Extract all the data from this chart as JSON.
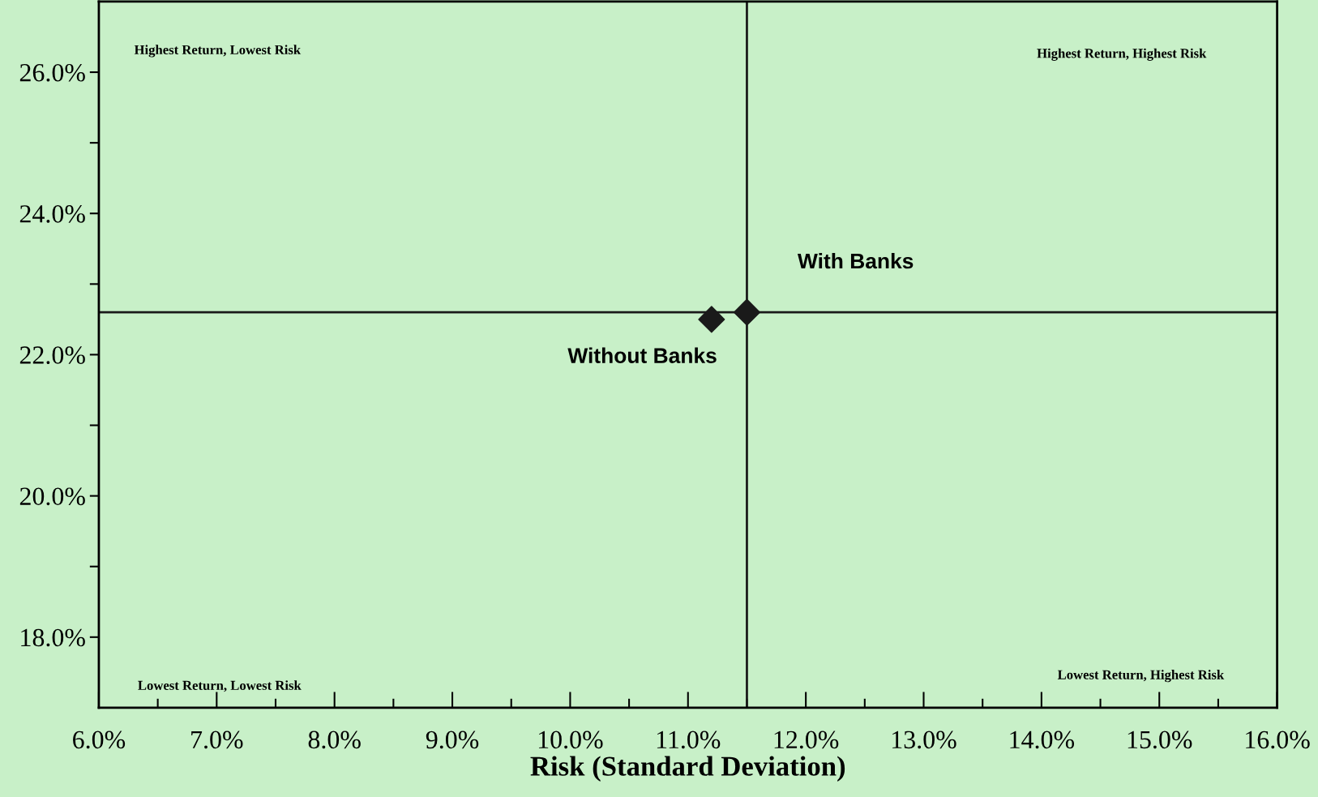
{
  "chart_data": {
    "type": "scatter",
    "xlabel": "Risk (Standard Deviation)",
    "series": [
      {
        "name": "With Banks",
        "color": "#1a1a1a",
        "x": [
          11.5
        ],
        "values": [
          22.6
        ]
      },
      {
        "name": "Without Banks",
        "color": "#1a1a1a",
        "x": [
          11.2
        ],
        "values": [
          22.5
        ]
      }
    ],
    "marker": "diamond",
    "xlim": [
      6,
      16
    ],
    "ylim": [
      17,
      27
    ],
    "xticks": [
      {
        "value": 6,
        "label": "6.0%"
      },
      {
        "value": 6.5,
        "label": null
      },
      {
        "value": 7,
        "label": "7.0%"
      },
      {
        "value": 7.5,
        "label": null
      },
      {
        "value": 8,
        "label": "8.0%"
      },
      {
        "value": 8.5,
        "label": null
      },
      {
        "value": 9,
        "label": "9.0%"
      },
      {
        "value": 9.5,
        "label": null
      },
      {
        "value": 10,
        "label": "10.0%"
      },
      {
        "value": 10.5,
        "label": null
      },
      {
        "value": 11,
        "label": "11.0%"
      },
      {
        "value": 11.5,
        "label": null
      },
      {
        "value": 12,
        "label": "12.0%"
      },
      {
        "value": 12.5,
        "label": null
      },
      {
        "value": 13,
        "label": "13.0%"
      },
      {
        "value": 13.5,
        "label": null
      },
      {
        "value": 14,
        "label": "14.0%"
      },
      {
        "value": 14.5,
        "label": null
      },
      {
        "value": 15,
        "label": "15.0%"
      },
      {
        "value": 15.5,
        "label": null
      },
      {
        "value": 16,
        "label": "16.0%"
      }
    ],
    "yticks": [
      {
        "value": 18,
        "label": "18.0%"
      },
      {
        "value": 19,
        "label": null
      },
      {
        "value": 20,
        "label": "20.0%"
      },
      {
        "value": 21,
        "label": null
      },
      {
        "value": 22,
        "label": "22.0%"
      },
      {
        "value": 23,
        "label": null
      },
      {
        "value": 24,
        "label": "24.0%"
      },
      {
        "value": 25,
        "label": null
      },
      {
        "value": 26,
        "label": "26.0%"
      }
    ],
    "ref_lines": [
      {
        "axis": "x",
        "value": 11.5,
        "color": "#1a1a1a"
      },
      {
        "axis": "y",
        "value": 22.6,
        "color": "#1a1a1a"
      }
    ],
    "annotations": [
      "Highest Return, Lowest Risk",
      "Highest Return, Highest Risk",
      "Lowest Return, Lowest Risk",
      "Lowest Return, Highest Risk"
    ],
    "grid": false,
    "legend": false
  }
}
